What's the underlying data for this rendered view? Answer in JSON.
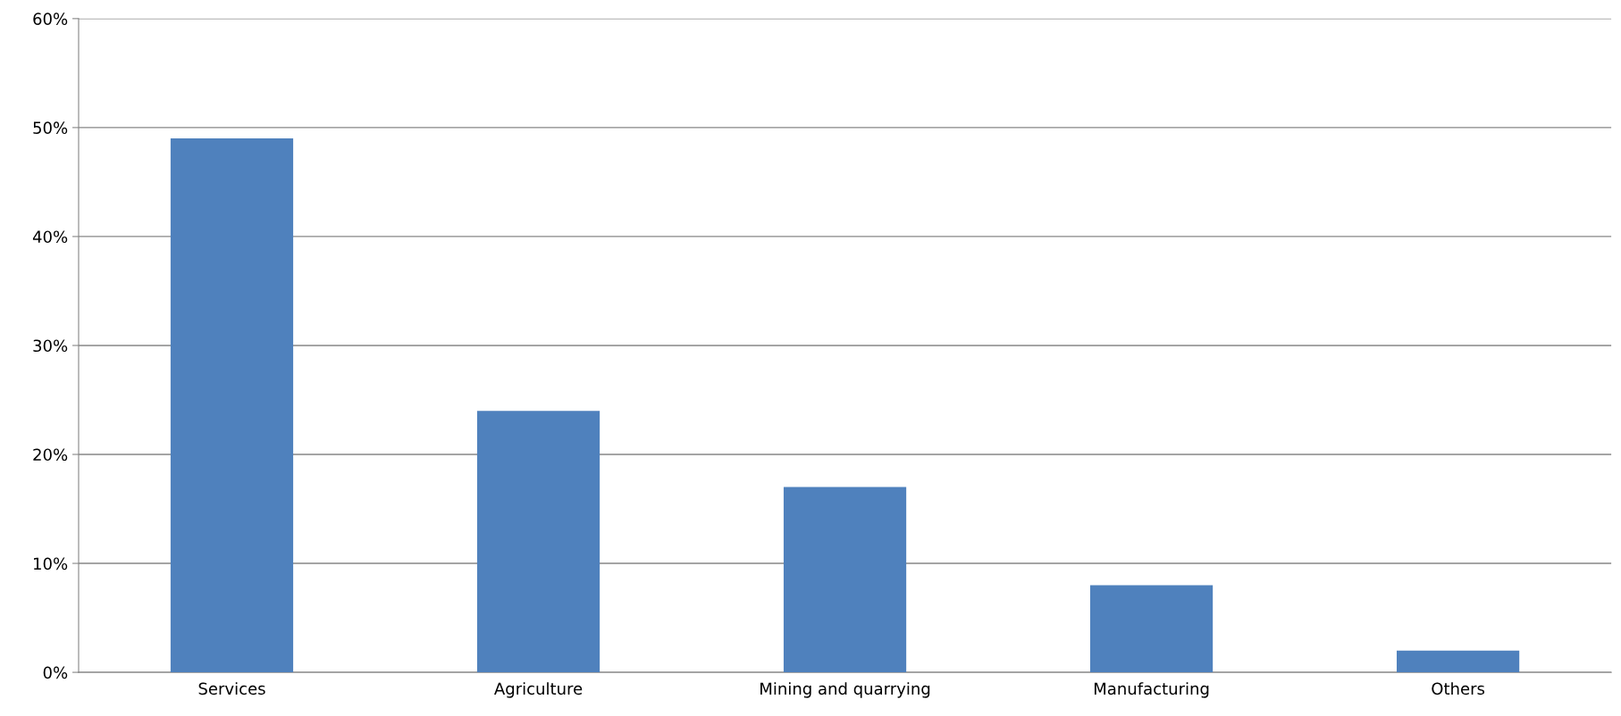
{
  "chart_data": {
    "type": "bar",
    "categories": [
      "Services",
      "Agriculture",
      "Mining and quarrying",
      "Manufacturing",
      "Others"
    ],
    "values": [
      49,
      24,
      17,
      8,
      2
    ],
    "color": "#4f81bd",
    "ylim": [
      0,
      60
    ],
    "yticks": [
      {
        "value": 0,
        "label": "0%"
      },
      {
        "value": 10,
        "label": "10%"
      },
      {
        "value": 20,
        "label": "20%"
      },
      {
        "value": 30,
        "label": "30%"
      },
      {
        "value": 40,
        "label": "40%"
      },
      {
        "value": 50,
        "label": "50%"
      },
      {
        "value": 60,
        "label": "60%"
      }
    ],
    "grid": "y",
    "legend": false
  }
}
